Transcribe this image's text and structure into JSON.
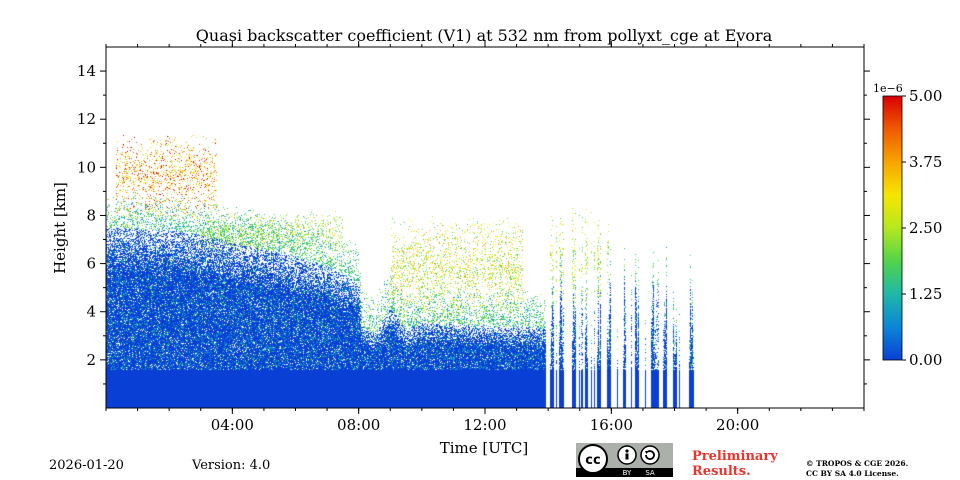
{
  "chart_data": {
    "type": "heatmap",
    "title": "Quasi backscatter coefficient (V1) at 532 nm from pollyxt_cge at Evora",
    "xlabel": "Time [UTC]",
    "ylabel": "Height [km]",
    "xlim_hours": [
      0,
      24
    ],
    "ylim_km": [
      0,
      15
    ],
    "x_ticks": [
      {
        "hour": 4,
        "label": "04:00"
      },
      {
        "hour": 8,
        "label": "08:00"
      },
      {
        "hour": 12,
        "label": "12:00"
      },
      {
        "hour": 16,
        "label": "16:00"
      },
      {
        "hour": 20,
        "label": "20:00"
      }
    ],
    "y_ticks": [
      {
        "km": 2,
        "label": "2"
      },
      {
        "km": 4,
        "label": "4"
      },
      {
        "km": 6,
        "label": "6"
      },
      {
        "km": 8,
        "label": "8"
      },
      {
        "km": 10,
        "label": "10"
      },
      {
        "km": 12,
        "label": "12"
      },
      {
        "km": 14,
        "label": "14"
      }
    ],
    "colorbar": {
      "exponent": "1e−6",
      "range": [
        0,
        5
      ],
      "ticks": [
        {
          "value": 0,
          "label": "0.00"
        },
        {
          "value": 1.25,
          "label": "1.25"
        },
        {
          "value": 2.5,
          "label": "2.50"
        },
        {
          "value": 3.75,
          "label": "3.75"
        },
        {
          "value": 5,
          "label": "5.00"
        }
      ],
      "colors": [
        "#0a3fd6",
        "#0a86d6",
        "#1fb8a8",
        "#52d44a",
        "#b6e81e",
        "#f6e600",
        "#f7a400",
        "#f05a00",
        "#d80000"
      ]
    },
    "boundary_layer_top_km": [
      [
        0,
        7.5
      ],
      [
        2,
        7.4
      ],
      [
        3,
        7.2
      ],
      [
        4,
        6.9
      ],
      [
        5,
        6.6
      ],
      [
        6,
        6.3
      ],
      [
        7,
        5.9
      ],
      [
        8,
        5.2
      ],
      [
        8.1,
        3.4
      ],
      [
        8.5,
        3.1
      ],
      [
        9,
        4.2
      ],
      [
        9.5,
        3.2
      ],
      [
        10,
        3.6
      ],
      [
        11,
        3.5
      ],
      [
        12,
        3.4
      ],
      [
        13,
        3.4
      ],
      [
        13.9,
        3.3
      ]
    ],
    "elevated_layers": [
      {
        "hour_start": 0.3,
        "hour_end": 3.5,
        "base_km": 7.8,
        "top_km": 11.5,
        "intensity": 4.0
      },
      {
        "hour_start": 3.0,
        "hour_end": 7.5,
        "base_km": 6.4,
        "top_km": 8.2,
        "intensity": 2.5
      },
      {
        "hour_start": 9.0,
        "hour_end": 13.2,
        "base_km": 3.6,
        "top_km": 8.0,
        "intensity": 3.0
      },
      {
        "hour_start": 14.0,
        "hour_end": 15.9,
        "base_km": 4.0,
        "top_km": 8.4,
        "intensity": 2.8
      }
    ],
    "profile_columns_hours": [
      14.1,
      14.4,
      14.8,
      15.2,
      15.6,
      15.9,
      16.4,
      16.8,
      17.3,
      17.7,
      18.0,
      18.5
    ],
    "data_end_hour": 18.6
  },
  "footer": {
    "date": "2026-01-20",
    "version": "Version: 4.0",
    "license_badge": [
      "BY",
      "SA"
    ],
    "preliminary_line1": "Preliminary",
    "preliminary_line2": "Results.",
    "copyright_line1": "© TROPOS & CGE 2026.",
    "copyright_line2": "CC BY SA 4.0 License."
  }
}
